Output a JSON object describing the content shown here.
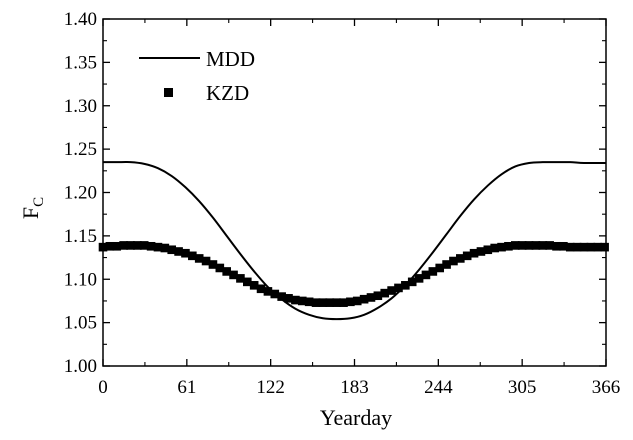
{
  "chart_data": {
    "type": "line",
    "title": "",
    "xlabel": "Yearday",
    "ylabel": {
      "main": "F",
      "sub": "C"
    },
    "xlim": [
      0,
      366
    ],
    "ylim": [
      1.0,
      1.4
    ],
    "xticks": [
      0,
      61,
      122,
      183,
      244,
      305,
      366
    ],
    "xtick_labels": [
      "0",
      "61",
      "122",
      "183",
      "244",
      "305",
      "366"
    ],
    "yticks": [
      1.0,
      1.05,
      1.1,
      1.15,
      1.2,
      1.25,
      1.3,
      1.35,
      1.4
    ],
    "ytick_labels": [
      "1.00",
      "1.05",
      "1.10",
      "1.15",
      "1.20",
      "1.25",
      "1.30",
      "1.35",
      "1.40"
    ],
    "grid": false,
    "legend_position": "top-left",
    "series": [
      {
        "name": "MDD",
        "style": "solid-line",
        "color": "#000000",
        "x": [
          0,
          10,
          20,
          30,
          40,
          50,
          60,
          70,
          80,
          90,
          100,
          110,
          120,
          130,
          140,
          150,
          160,
          170,
          180,
          190,
          200,
          210,
          220,
          230,
          240,
          250,
          260,
          270,
          280,
          290,
          300,
          310,
          320,
          330,
          340,
          350,
          366
        ],
        "y": [
          1.235,
          1.235,
          1.235,
          1.233,
          1.228,
          1.219,
          1.206,
          1.19,
          1.171,
          1.15,
          1.129,
          1.109,
          1.091,
          1.077,
          1.066,
          1.059,
          1.055,
          1.054,
          1.055,
          1.059,
          1.067,
          1.078,
          1.093,
          1.111,
          1.131,
          1.152,
          1.173,
          1.192,
          1.208,
          1.221,
          1.23,
          1.234,
          1.235,
          1.235,
          1.235,
          1.234,
          1.234
        ]
      },
      {
        "name": "KZD",
        "style": "square-markers",
        "color": "#000000",
        "x": [
          0,
          5,
          10,
          15,
          20,
          25,
          30,
          35,
          40,
          45,
          50,
          55,
          60,
          65,
          70,
          75,
          80,
          85,
          90,
          95,
          100,
          105,
          110,
          115,
          120,
          125,
          130,
          135,
          140,
          145,
          150,
          155,
          160,
          165,
          170,
          175,
          180,
          185,
          190,
          195,
          200,
          205,
          210,
          215,
          220,
          225,
          230,
          235,
          240,
          245,
          250,
          255,
          260,
          265,
          270,
          275,
          280,
          285,
          290,
          295,
          300,
          305,
          310,
          315,
          320,
          325,
          330,
          335,
          340,
          345,
          350,
          355,
          360,
          365
        ],
        "y": [
          1.137,
          1.138,
          1.138,
          1.139,
          1.139,
          1.139,
          1.139,
          1.138,
          1.137,
          1.136,
          1.134,
          1.132,
          1.13,
          1.127,
          1.124,
          1.121,
          1.117,
          1.113,
          1.109,
          1.105,
          1.101,
          1.097,
          1.093,
          1.089,
          1.086,
          1.083,
          1.08,
          1.078,
          1.076,
          1.075,
          1.074,
          1.073,
          1.073,
          1.073,
          1.073,
          1.073,
          1.074,
          1.075,
          1.077,
          1.079,
          1.081,
          1.084,
          1.087,
          1.09,
          1.093,
          1.097,
          1.101,
          1.105,
          1.109,
          1.113,
          1.117,
          1.121,
          1.124,
          1.127,
          1.13,
          1.132,
          1.134,
          1.136,
          1.137,
          1.138,
          1.139,
          1.139,
          1.139,
          1.139,
          1.139,
          1.139,
          1.138,
          1.138,
          1.137,
          1.137,
          1.137,
          1.137,
          1.137,
          1.137
        ]
      }
    ]
  }
}
